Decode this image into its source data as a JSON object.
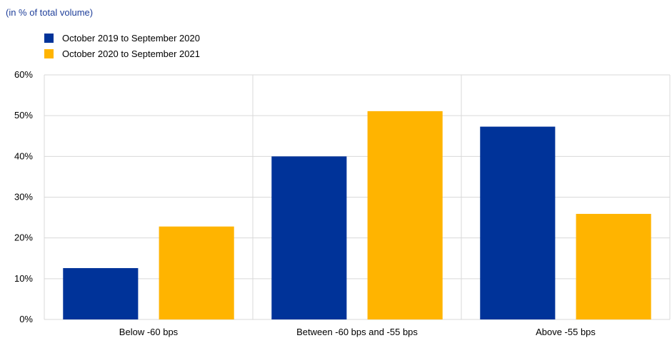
{
  "subtitle": "(in % of total volume)",
  "colors": {
    "series1": "#003399",
    "series2": "#ffb400",
    "grid": "#d9d9d9"
  },
  "chart_data": {
    "type": "bar",
    "title": "",
    "subtitle": "(in % of total volume)",
    "categories": [
      "Below -60 bps",
      "Between -60 bps and -55 bps",
      "Above -55 bps"
    ],
    "series": [
      {
        "name": "October 2019 to September 2020",
        "values": [
          12.6,
          40.0,
          47.3
        ]
      },
      {
        "name": "October 2020 to September 2021",
        "values": [
          22.8,
          51.1,
          25.9
        ]
      }
    ],
    "ylim": [
      0,
      60
    ],
    "yticks": [
      "0%",
      "10%",
      "20%",
      "30%",
      "40%",
      "50%",
      "60%"
    ],
    "ytick_values": [
      0,
      10,
      20,
      30,
      40,
      50,
      60
    ],
    "legend_position": "top-left",
    "grid": true
  }
}
